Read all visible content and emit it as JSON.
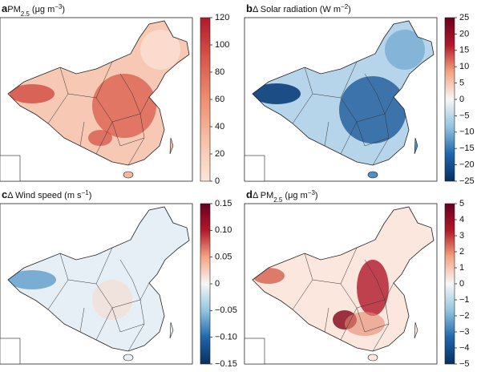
{
  "panels": [
    {
      "letter": "a",
      "title": [
        {
          "text": "PM"
        },
        {
          "sub": "2.5"
        },
        {
          "text": " (μg m"
        },
        {
          "sup": "−3"
        },
        {
          "text": ")"
        }
      ],
      "colorbar": {
        "lim": [
          0,
          120
        ],
        "ticks": [
          0,
          20,
          40,
          60,
          80,
          100,
          120
        ],
        "colors": [
          "#fde5d9",
          "#f8c0a6",
          "#ef8e6f",
          "#d8574a",
          "#b2182b"
        ]
      }
    },
    {
      "letter": "b",
      "title": [
        {
          "text": "Δ Solar radiation (W m"
        },
        {
          "sup": "−2"
        },
        {
          "text": ")"
        }
      ],
      "colorbar": {
        "lim": [
          -25,
          25
        ],
        "ticks": [
          {
            "value": -25,
            "label": "−25"
          },
          {
            "value": -20,
            "label": "−20"
          },
          {
            "value": -15,
            "label": "−15"
          },
          {
            "value": -10,
            "label": "−10"
          },
          {
            "value": -5,
            "label": "−5"
          },
          0,
          5,
          10,
          15,
          20,
          25
        ],
        "colors": [
          "#053061",
          "#2166ac",
          "#92c5de",
          "#f7f7f7",
          "#f4a582",
          "#b2182b",
          "#67001f"
        ]
      }
    },
    {
      "letter": "c",
      "title": [
        {
          "text": "Δ Wind speed (m s"
        },
        {
          "sup": "−1"
        },
        {
          "text": ")"
        }
      ],
      "colorbar": {
        "lim": [
          -0.15,
          0.15
        ],
        "ticks": [
          {
            "value": -0.15,
            "label": "−0.15"
          },
          {
            "value": -0.1,
            "label": "−0.10"
          },
          {
            "value": -0.05,
            "label": "−0.05"
          },
          0,
          0.05,
          {
            "value": 0.1,
            "label": "0.10"
          },
          0.15
        ],
        "colors": [
          "#053061",
          "#2166ac",
          "#92c5de",
          "#f7f7f7",
          "#f4a582",
          "#b2182b",
          "#67001f"
        ]
      }
    },
    {
      "letter": "d",
      "title": [
        {
          "text": "Δ PM"
        },
        {
          "sub": "2.5"
        },
        {
          "text": " (μg m"
        },
        {
          "sup": "−3"
        },
        {
          "text": ")"
        }
      ],
      "colorbar": {
        "lim": [
          -5,
          5
        ],
        "ticks": [
          {
            "value": -5,
            "label": "−5"
          },
          {
            "value": -4,
            "label": "−4"
          },
          {
            "value": -3,
            "label": "−3"
          },
          {
            "value": -2,
            "label": "−2"
          },
          {
            "value": -1,
            "label": "−1"
          },
          0,
          1,
          2,
          3,
          4,
          5
        ],
        "colors": [
          "#053061",
          "#2166ac",
          "#92c5de",
          "#f7f7f7",
          "#f4a582",
          "#b2182b",
          "#67001f"
        ]
      }
    }
  ]
}
